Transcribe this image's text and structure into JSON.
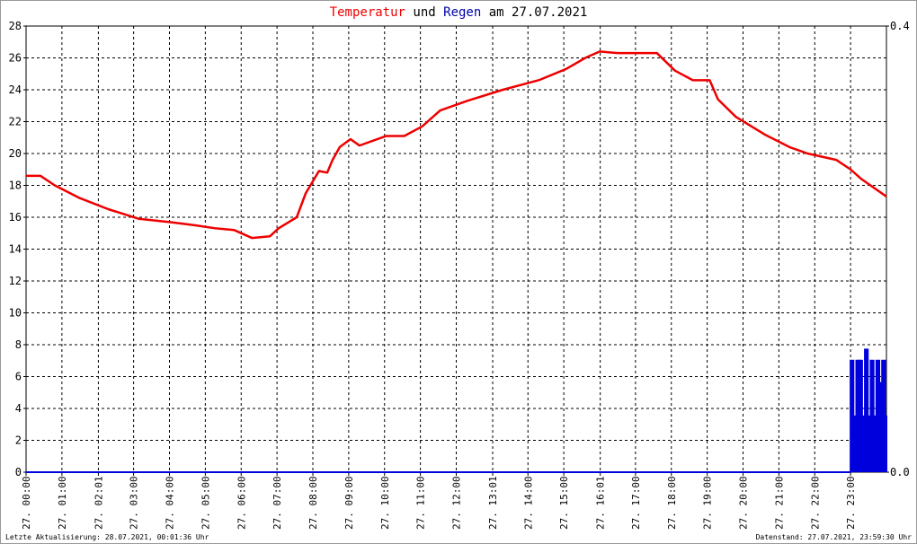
{
  "chart_data": {
    "type": "line",
    "title_connector": "und",
    "title_suffix": "am 27.07.2021",
    "footer_left": "Letzte Aktualisierung: 28.07.2021, 00:01:36 Uhr",
    "footer_right": "Datenstand: 27.07.2021, 23:59:30 Uhr",
    "xlim": [
      0,
      24
    ],
    "xticks": [
      {
        "value": 0,
        "label": "27. 00:00"
      },
      {
        "value": 1,
        "label": "27. 01:00"
      },
      {
        "value": 2.0167,
        "label": "27. 02:01"
      },
      {
        "value": 3,
        "label": "27. 03:00"
      },
      {
        "value": 4,
        "label": "27. 04:00"
      },
      {
        "value": 5,
        "label": "27. 05:00"
      },
      {
        "value": 6,
        "label": "27. 06:00"
      },
      {
        "value": 7,
        "label": "27. 07:00"
      },
      {
        "value": 8,
        "label": "27. 08:00"
      },
      {
        "value": 9,
        "label": "27. 09:00"
      },
      {
        "value": 10,
        "label": "27. 10:00"
      },
      {
        "value": 11,
        "label": "27. 11:00"
      },
      {
        "value": 12,
        "label": "27. 12:00"
      },
      {
        "value": 13.0167,
        "label": "27. 13:01"
      },
      {
        "value": 14,
        "label": "27. 14:00"
      },
      {
        "value": 15,
        "label": "27. 15:00"
      },
      {
        "value": 16.0167,
        "label": "27. 16:01"
      },
      {
        "value": 17,
        "label": "27. 17:00"
      },
      {
        "value": 18,
        "label": "27. 18:00"
      },
      {
        "value": 19,
        "label": "27. 19:00"
      },
      {
        "value": 20,
        "label": "27. 20:00"
      },
      {
        "value": 21,
        "label": "27. 21:00"
      },
      {
        "value": 22,
        "label": "27. 22:00"
      },
      {
        "value": 23,
        "label": "27. 23:00"
      }
    ],
    "ylim": [
      0,
      28
    ],
    "yticks": [
      0,
      2,
      4,
      6,
      8,
      10,
      12,
      14,
      16,
      18,
      20,
      22,
      24,
      26,
      28
    ],
    "y2lim": [
      0,
      0.4
    ],
    "y2ticks": [
      {
        "value": 0,
        "label": "0.0"
      },
      0.4
    ],
    "grid": true,
    "series": [
      {
        "name": "Temperatur",
        "color": "#ee0000",
        "x": [
          0,
          0.4,
          0.8,
          1.5,
          2.3,
          3.15,
          4.0,
          4.7,
          5.3,
          5.8,
          6.3,
          6.8,
          7.04,
          7.55,
          7.8,
          8.17,
          8.4,
          8.55,
          8.75,
          9.05,
          9.3,
          10.05,
          10.55,
          11.05,
          11.55,
          12.3,
          13.3,
          14.3,
          15.06,
          15.6,
          16.0,
          16.5,
          17.0,
          17.6,
          18.1,
          18.6,
          19.07,
          19.3,
          19.8,
          20.6,
          21.3,
          21.8,
          22.6,
          23.0,
          23.3,
          24.0
        ],
        "values": [
          18.6,
          18.6,
          18.0,
          17.2,
          16.5,
          15.9,
          15.7,
          15.5,
          15.3,
          15.2,
          14.7,
          14.8,
          15.3,
          16.0,
          17.5,
          18.9,
          18.8,
          19.6,
          20.4,
          20.9,
          20.5,
          21.1,
          21.1,
          21.7,
          22.7,
          23.3,
          24.0,
          24.6,
          25.3,
          26.0,
          26.4,
          26.3,
          26.3,
          26.3,
          25.2,
          24.6,
          24.6,
          23.4,
          22.3,
          21.2,
          20.4,
          20.0,
          19.6,
          19.0,
          18.4,
          17.3
        ]
      },
      {
        "name": "Regen",
        "color": "#0000dd",
        "axis": "y2",
        "x": [
          0,
          23.0,
          23.08,
          23.16,
          23.24,
          23.32,
          23.4,
          23.48,
          23.56,
          23.64,
          23.72,
          23.8,
          23.88,
          23.96
        ],
        "values": [
          0,
          0.1,
          0.05,
          0.1,
          0.1,
          0.05,
          0.11,
          0.05,
          0.1,
          0.05,
          0.1,
          0.08,
          0.1,
          0.05
        ]
      }
    ]
  }
}
